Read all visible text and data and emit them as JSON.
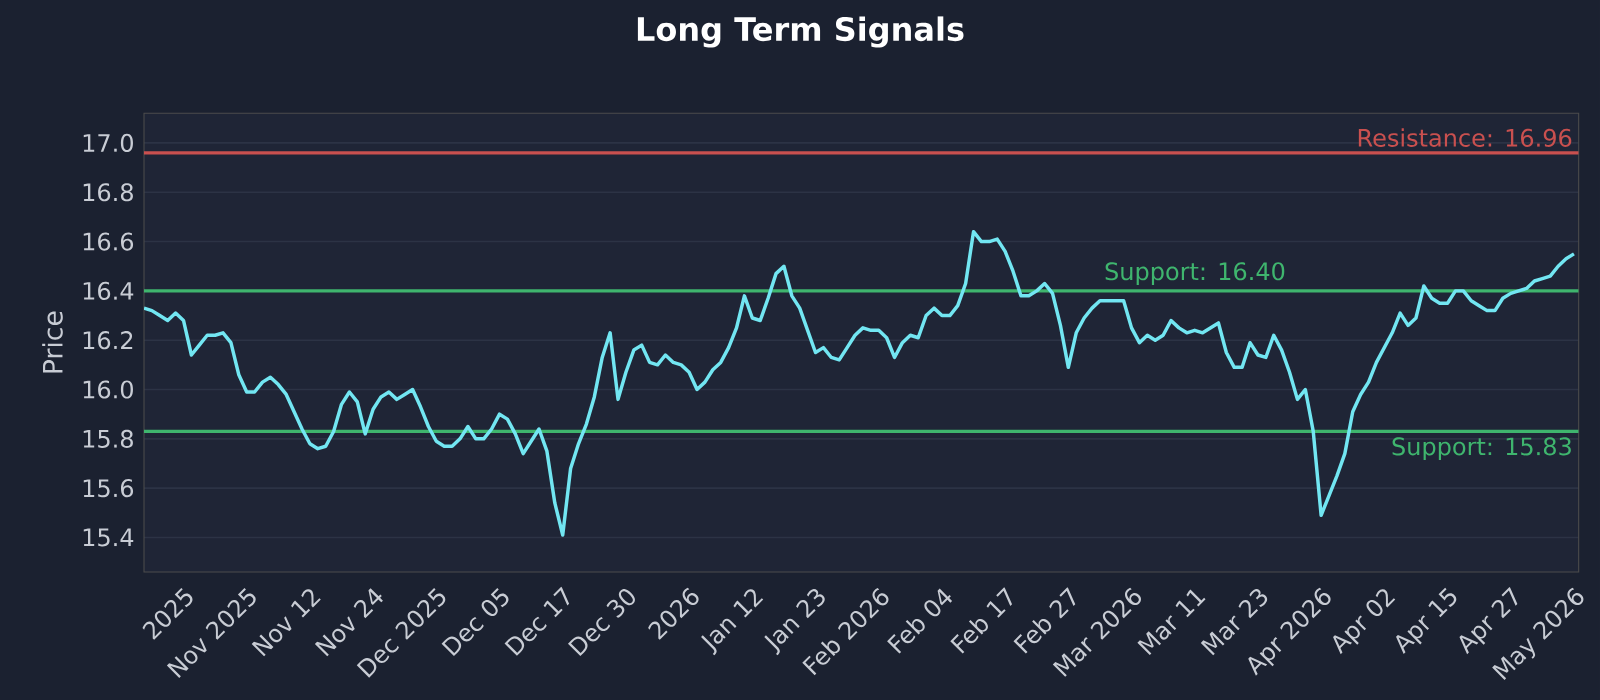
{
  "chart_data": {
    "type": "line",
    "title": "Long Term Signals",
    "ylabel": "Price",
    "categories": [
      null,
      null,
      null,
      null,
      null,
      "2025",
      null,
      null,
      null,
      null,
      null,
      null,
      null,
      "Nov 2025",
      null,
      null,
      null,
      null,
      null,
      null,
      null,
      "Nov 12",
      null,
      null,
      null,
      null,
      null,
      null,
      null,
      "Nov 24",
      null,
      null,
      null,
      null,
      null,
      null,
      null,
      "Dec 2025",
      null,
      null,
      null,
      null,
      null,
      null,
      null,
      "Dec 05",
      null,
      null,
      null,
      null,
      null,
      null,
      null,
      "Dec 17",
      null,
      null,
      null,
      null,
      null,
      null,
      null,
      "Dec 30",
      null,
      null,
      null,
      null,
      null,
      null,
      null,
      "2026",
      null,
      null,
      null,
      null,
      null,
      null,
      null,
      "Jan 12",
      null,
      null,
      null,
      null,
      null,
      null,
      null,
      "Jan 23",
      null,
      null,
      null,
      null,
      null,
      null,
      null,
      "Feb 2026",
      null,
      null,
      null,
      null,
      null,
      null,
      null,
      "Feb 04",
      null,
      null,
      null,
      null,
      null,
      null,
      null,
      "Feb 17",
      null,
      null,
      null,
      null,
      null,
      null,
      null,
      "Feb 27",
      null,
      null,
      null,
      null,
      null,
      null,
      null,
      "Mar 2026",
      null,
      null,
      null,
      null,
      null,
      null,
      null,
      "Mar 11",
      null,
      null,
      null,
      null,
      null,
      null,
      null,
      "Mar 23",
      null,
      null,
      null,
      null,
      null,
      null,
      null,
      "Apr 2026",
      null,
      null,
      null,
      null,
      null,
      null,
      null,
      "Apr 02",
      null,
      null,
      null,
      null,
      null,
      null,
      null,
      "Apr 15",
      null,
      null,
      null,
      null,
      null,
      null,
      null,
      "Apr 27",
      null,
      null,
      null,
      null,
      null,
      null,
      null,
      "May 2026"
    ],
    "series": [
      {
        "color": "#72e6f2",
        "values": [
          16.33,
          16.32,
          16.3,
          16.28,
          16.31,
          16.28,
          16.14,
          16.18,
          16.22,
          16.22,
          16.23,
          16.19,
          16.06,
          15.99,
          15.99,
          16.03,
          16.05,
          16.02,
          15.98,
          15.91,
          15.84,
          15.78,
          15.76,
          15.77,
          15.83,
          15.94,
          15.99,
          15.95,
          15.82,
          15.92,
          15.97,
          15.99,
          15.96,
          15.98,
          16.0,
          15.93,
          15.85,
          15.79,
          15.77,
          15.77,
          15.8,
          15.85,
          15.8,
          15.8,
          15.84,
          15.9,
          15.88,
          15.82,
          15.74,
          15.79,
          15.84,
          15.75,
          15.54,
          15.41,
          15.68,
          15.78,
          15.86,
          15.97,
          16.13,
          16.23,
          15.96,
          16.07,
          16.16,
          16.18,
          16.11,
          16.1,
          16.14,
          16.11,
          16.1,
          16.07,
          16.0,
          16.03,
          16.08,
          16.11,
          16.17,
          16.25,
          16.38,
          16.29,
          16.28,
          16.37,
          16.47,
          16.5,
          16.38,
          16.33,
          16.24,
          16.15,
          16.17,
          16.13,
          16.12,
          16.17,
          16.22,
          16.25,
          16.24,
          16.24,
          16.21,
          16.13,
          16.19,
          16.22,
          16.21,
          16.3,
          16.33,
          16.3,
          16.3,
          16.34,
          16.43,
          16.64,
          16.6,
          16.6,
          16.61,
          16.56,
          16.48,
          16.38,
          16.38,
          16.4,
          16.43,
          16.39,
          16.26,
          16.09,
          16.23,
          16.29,
          16.33,
          16.36,
          16.36,
          16.36,
          16.36,
          16.25,
          16.19,
          16.22,
          16.2,
          16.22,
          16.28,
          16.25,
          16.23,
          16.24,
          16.23,
          16.25,
          16.27,
          16.15,
          16.09,
          16.09,
          16.19,
          16.14,
          16.13,
          16.22,
          16.16,
          16.07,
          15.96,
          16.0,
          15.83,
          15.49,
          15.57,
          15.65,
          15.74,
          15.91,
          15.98,
          16.03,
          16.11,
          16.17,
          16.23,
          16.31,
          16.26,
          16.29,
          16.42,
          16.37,
          16.35,
          16.35,
          16.4,
          16.4,
          16.36,
          16.34,
          16.32,
          16.32,
          16.37,
          16.39,
          16.4,
          16.41,
          16.44,
          16.45,
          16.46,
          16.5,
          16.53,
          16.55
        ]
      }
    ],
    "ylim": [
      15.26,
      17.12
    ],
    "yticks": [
      15.4,
      15.6,
      15.8,
      {
        "value": 16,
        "label": "16.0"
      },
      16.2,
      16.4,
      16.6,
      16.8,
      {
        "value": 17,
        "label": "17.0"
      }
    ],
    "grid": "y",
    "line_style": "solid",
    "ref_lines": [
      {
        "axis": "y",
        "value": 16.96,
        "label": "Resistance: 16.96",
        "color": "#c9504f"
      },
      {
        "axis": "y",
        "value": 16.4,
        "label": "Support: 16.40",
        "color": "#3fb56e"
      },
      {
        "axis": "y",
        "value": 15.83,
        "label": "Support: 15.83",
        "color": "#3fb56e"
      }
    ]
  }
}
